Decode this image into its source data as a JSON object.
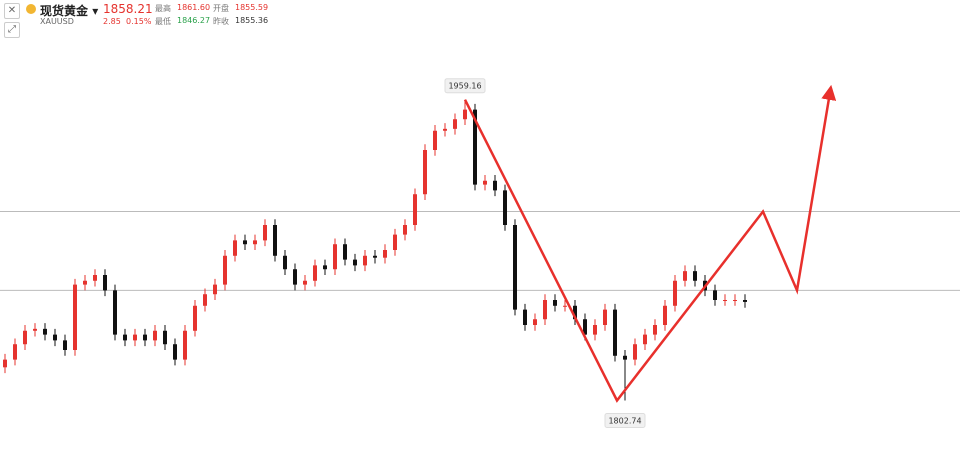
{
  "header": {
    "name": "现货黄金",
    "symbol": "XAUUSD",
    "price": "1858.21",
    "change": "2.85",
    "change_pct": "0.15%",
    "stats": [
      [
        "最高",
        "1861.60"
      ],
      [
        "开盘",
        "1855.59"
      ],
      [
        "最低",
        "1846.27"
      ],
      [
        "昨收",
        "1855.36"
      ]
    ]
  },
  "chart_data": {
    "type": "candlestick",
    "up_color": "#e5332e",
    "down_color": "#111111",
    "xlim": [
      -0.5,
      95.5
    ],
    "ylim": [
      1764,
      2011
    ],
    "open": [
      1820,
      1824,
      1832,
      1839,
      1840,
      1837,
      1834,
      1829,
      1863,
      1865,
      1868,
      1860,
      1837,
      1834,
      1837,
      1834,
      1839,
      1832,
      1824,
      1839,
      1852,
      1858,
      1863,
      1878,
      1886,
      1884,
      1886,
      1894,
      1878,
      1871,
      1863,
      1865,
      1873,
      1871,
      1884,
      1876,
      1873,
      1878,
      1877,
      1881,
      1889,
      1894,
      1910,
      1933,
      1943,
      1944,
      1949,
      1954,
      1915,
      1917,
      1912,
      1894,
      1850,
      1842,
      1845,
      1855,
      1852,
      1852,
      1845,
      1837,
      1842,
      1850,
      1826,
      1824,
      1832,
      1837,
      1842,
      1852,
      1865,
      1870,
      1865,
      1860,
      1855,
      1855,
      1855
    ],
    "high": [
      1827,
      1835,
      1842,
      1843,
      1843,
      1840,
      1837,
      1866,
      1868,
      1871,
      1871,
      1863,
      1840,
      1840,
      1840,
      1842,
      1842,
      1835,
      1842,
      1855,
      1861,
      1866,
      1881,
      1889,
      1889,
      1889,
      1897,
      1897,
      1881,
      1874,
      1868,
      1876,
      1876,
      1887,
      1887,
      1879,
      1881,
      1881,
      1884,
      1892,
      1897,
      1913,
      1936,
      1946,
      1947,
      1952,
      1959.16,
      1957,
      1920,
      1920,
      1915,
      1897,
      1853,
      1848,
      1858,
      1858,
      1855,
      1855,
      1848,
      1845,
      1853,
      1853,
      1829,
      1835,
      1840,
      1845,
      1855,
      1868,
      1873,
      1873,
      1868,
      1863,
      1858,
      1858,
      1858
    ],
    "low": [
      1817,
      1821,
      1829,
      1836,
      1834,
      1831,
      1826,
      1826,
      1860,
      1862,
      1857,
      1834,
      1831,
      1831,
      1831,
      1831,
      1829,
      1821,
      1821,
      1836,
      1849,
      1855,
      1860,
      1875,
      1881,
      1881,
      1883,
      1875,
      1868,
      1860,
      1860,
      1862,
      1868,
      1868,
      1873,
      1870,
      1870,
      1874,
      1874,
      1878,
      1886,
      1891,
      1907,
      1930,
      1940,
      1941,
      1946,
      1912,
      1912,
      1909,
      1891,
      1847,
      1839,
      1839,
      1842,
      1849,
      1849,
      1842,
      1834,
      1834,
      1839,
      1823,
      1802.74,
      1821,
      1829,
      1834,
      1839,
      1849,
      1862,
      1862,
      1857,
      1852,
      1852,
      1852,
      1851
    ],
    "close": [
      1824,
      1832,
      1839,
      1840,
      1837,
      1834,
      1829,
      1863,
      1865,
      1868,
      1860,
      1837,
      1834,
      1837,
      1834,
      1839,
      1832,
      1824,
      1839,
      1852,
      1858,
      1863,
      1878,
      1886,
      1884,
      1886,
      1894,
      1878,
      1871,
      1863,
      1865,
      1873,
      1871,
      1884,
      1876,
      1873,
      1878,
      1877,
      1881,
      1889,
      1894,
      1910,
      1933,
      1943,
      1944,
      1949,
      1954,
      1915,
      1917,
      1912,
      1894,
      1850,
      1842,
      1845,
      1855,
      1852,
      1852,
      1845,
      1837,
      1842,
      1850,
      1826,
      1824,
      1832,
      1837,
      1842,
      1852,
      1865,
      1870,
      1865,
      1860,
      1855,
      1855,
      1855,
      1854
    ],
    "levels": [
      1901,
      1860
    ],
    "level_color": "#bbbbbb",
    "forecast": {
      "color": "#e8302c",
      "x": [
        46,
        61.2,
        75.8,
        79.2,
        82.5
      ],
      "values": [
        1959.16,
        1802.74,
        1901,
        1860,
        1963
      ]
    }
  }
}
